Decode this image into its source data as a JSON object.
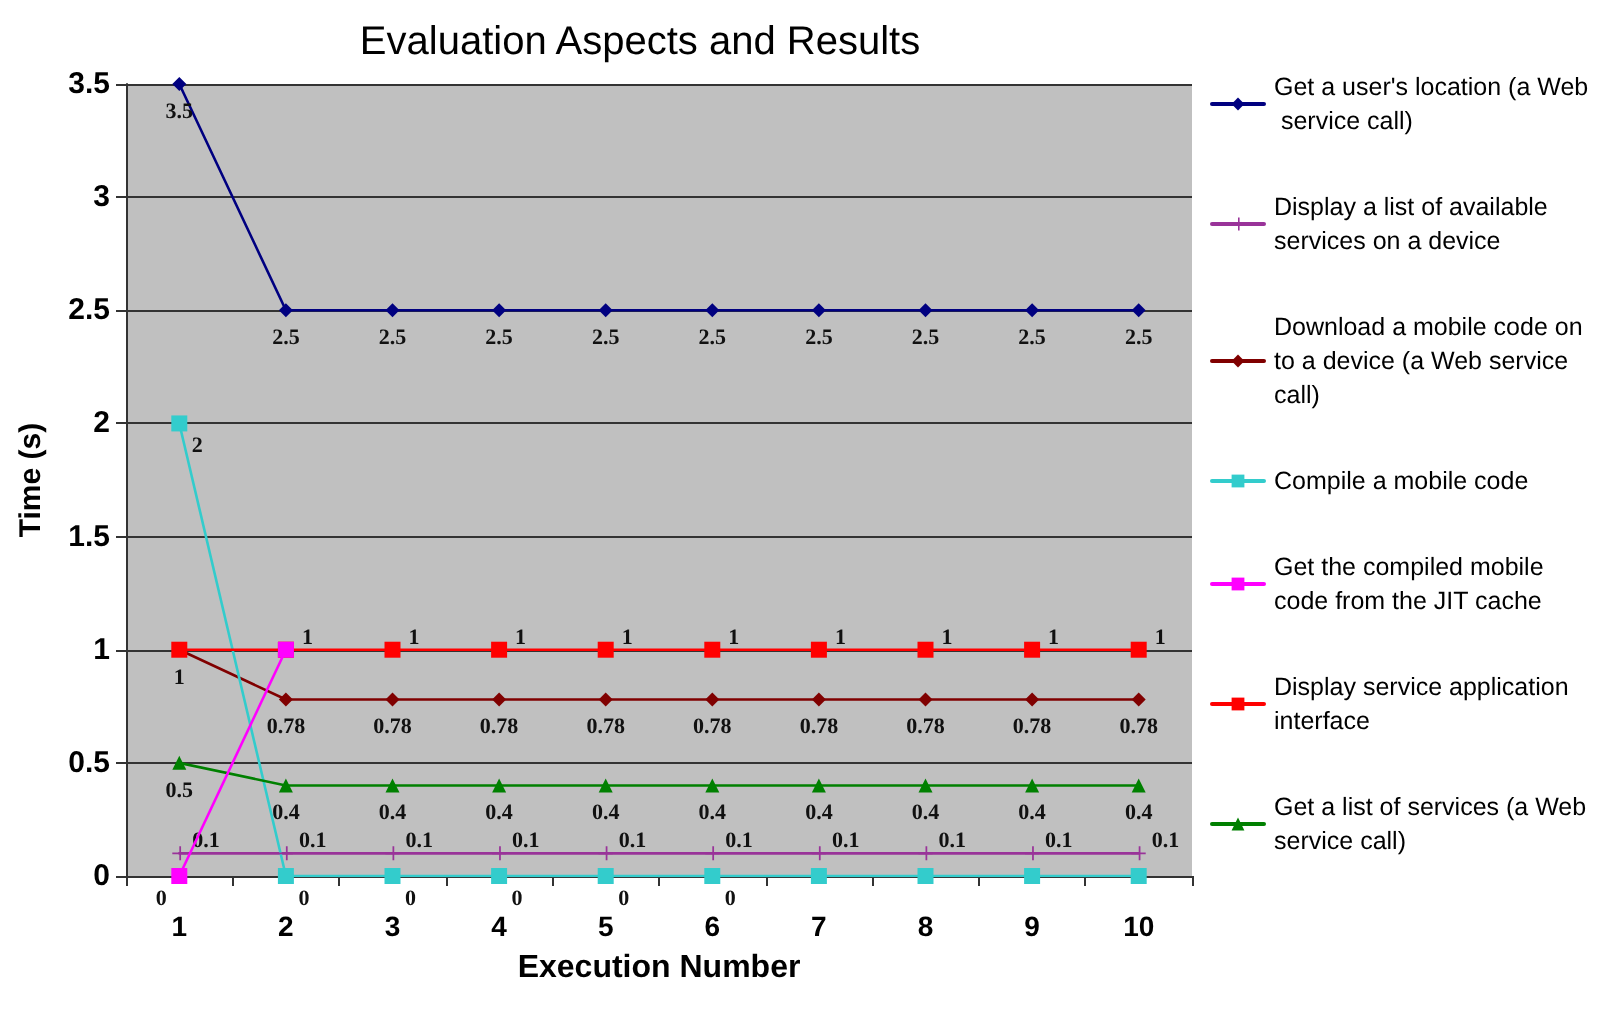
{
  "chart_data": {
    "type": "line",
    "title": "Evaluation Aspects and Results",
    "xlabel": "Execution Number",
    "ylabel": "Time (s)",
    "categories": [
      "1",
      "2",
      "3",
      "4",
      "5",
      "6",
      "7",
      "8",
      "9",
      "10"
    ],
    "series": [
      {
        "name": "Get a user's location (a Web service call)",
        "color": "#000080",
        "marker": "diamond",
        "values": [
          3.5,
          2.5,
          2.5,
          2.5,
          2.5,
          2.5,
          2.5,
          2.5,
          2.5,
          2.5
        ],
        "value_labels": [
          "3.5",
          "2.5",
          "2.5",
          "2.5",
          "2.5",
          "2.5",
          "2.5",
          "2.5",
          "2.5",
          "2.5"
        ]
      },
      {
        "name": "Display a list of available services on a device",
        "color": "#993399",
        "marker": "cross",
        "values": [
          0.1,
          0.1,
          0.1,
          0.1,
          0.1,
          0.1,
          0.1,
          0.1,
          0.1,
          0.1
        ],
        "value_labels": [
          "0.1",
          "0.1",
          "0.1",
          "0.1",
          "0.1",
          "0.1",
          "0.1",
          "0.1",
          "0.1",
          "0.1"
        ]
      },
      {
        "name": "Download a mobile code on to a device (a Web service call)",
        "color": "#800000",
        "marker": "diamond",
        "values": [
          1,
          0.78,
          0.78,
          0.78,
          0.78,
          0.78,
          0.78,
          0.78,
          0.78,
          0.78
        ],
        "value_labels": [
          "1",
          "0.78",
          "0.78",
          "0.78",
          "0.78",
          "0.78",
          "0.78",
          "0.78",
          "0.78",
          "0.78"
        ]
      },
      {
        "name": "Compile a mobile code",
        "color": "#33cccc",
        "marker": "square",
        "values": [
          2,
          0,
          0,
          0,
          0,
          0,
          0,
          0,
          0,
          0
        ],
        "value_labels": [
          "2",
          "0",
          "0",
          "0",
          "0",
          "0",
          null,
          null,
          null,
          null
        ]
      },
      {
        "name": "Get the compiled mobile code from the JIT cache",
        "color": "#ff00ff",
        "marker": "square",
        "values": [
          0,
          1,
          null,
          null,
          null,
          null,
          null,
          null,
          null,
          null
        ],
        "value_labels": [
          "0",
          null,
          null,
          null,
          null,
          null,
          null,
          null,
          null,
          null
        ]
      },
      {
        "name": "Display service application interface",
        "color": "#ff0000",
        "marker": "square",
        "values": [
          1,
          1,
          1,
          1,
          1,
          1,
          1,
          1,
          1,
          1
        ],
        "value_labels": [
          null,
          "1",
          "1",
          "1",
          "1",
          "1",
          "1",
          "1",
          "1",
          "1"
        ]
      },
      {
        "name": "Get a list of services (a Web service call)",
        "color": "#008000",
        "marker": "triangle",
        "values": [
          0.5,
          0.4,
          0.4,
          0.4,
          0.4,
          0.4,
          0.4,
          0.4,
          0.4,
          0.4
        ],
        "value_labels": [
          "0.5",
          "0.4",
          "0.4",
          "0.4",
          "0.4",
          "0.4",
          "0.4",
          "0.4",
          "0.4",
          "0.4"
        ]
      }
    ],
    "ylim": [
      0,
      3.5
    ],
    "yticks": [
      0,
      0.5,
      1,
      1.5,
      2,
      2.5,
      3,
      3.5
    ],
    "grid": "y",
    "legend": "right"
  }
}
